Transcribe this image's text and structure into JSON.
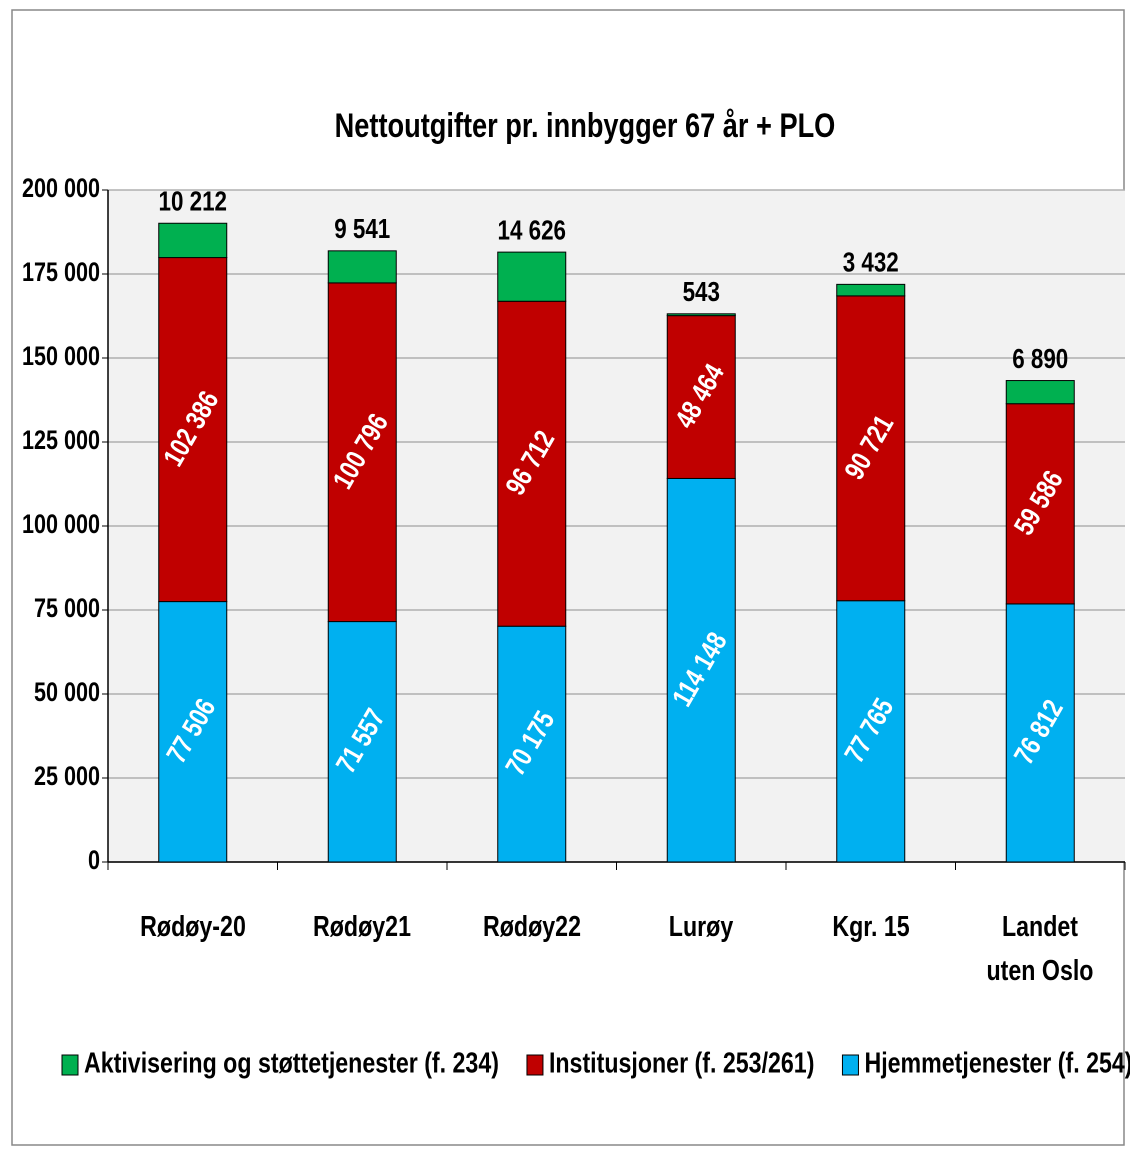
{
  "chart_data": {
    "type": "stacked_bar",
    "title": "Nettoutgifter pr. innbygger 67 år + PLO",
    "categories": [
      "Rødøy-20",
      "Rødøy21",
      "Rødøy22",
      "Lurøy",
      "Kgr. 15",
      "Landet uten Oslo"
    ],
    "series": [
      {
        "name": "Hjemmetjenester (f. 254)",
        "color": "#00b0f0",
        "values": [
          77506,
          71557,
          70175,
          114148,
          77765,
          76812
        ],
        "value_labels": [
          "77 506",
          "71 557",
          "70 175",
          "114 148",
          "77 765",
          "76 812"
        ]
      },
      {
        "name": "Institusjoner (f. 253/261)",
        "color": "#c00000",
        "values": [
          102386,
          100796,
          96712,
          48464,
          90721,
          59586
        ],
        "value_labels": [
          "102 386",
          "100 796",
          "96 712",
          "48 464",
          "90 721",
          "59 586"
        ]
      },
      {
        "name": "Aktivisering og støttetjenester (f. 234)",
        "color": "#00b050",
        "values": [
          10212,
          9541,
          14626,
          543,
          3432,
          6890
        ],
        "value_labels": [
          "10 212",
          "9 541",
          "14 626",
          "543",
          "3 432",
          "6 890"
        ]
      }
    ],
    "ylim": [
      0,
      200000
    ],
    "yticks": [
      0,
      {
        "value": 25000,
        "label": "25 000"
      },
      {
        "value": 50000,
        "label": "50 000"
      },
      {
        "value": 75000,
        "label": "75 000"
      },
      {
        "value": 100000,
        "label": "100 000"
      },
      {
        "value": 125000,
        "label": "125 000"
      },
      {
        "value": 150000,
        "label": "150 000"
      },
      {
        "value": 175000,
        "label": "175 000"
      },
      {
        "value": 200000,
        "label": "200 000"
      }
    ],
    "grid": true
  }
}
